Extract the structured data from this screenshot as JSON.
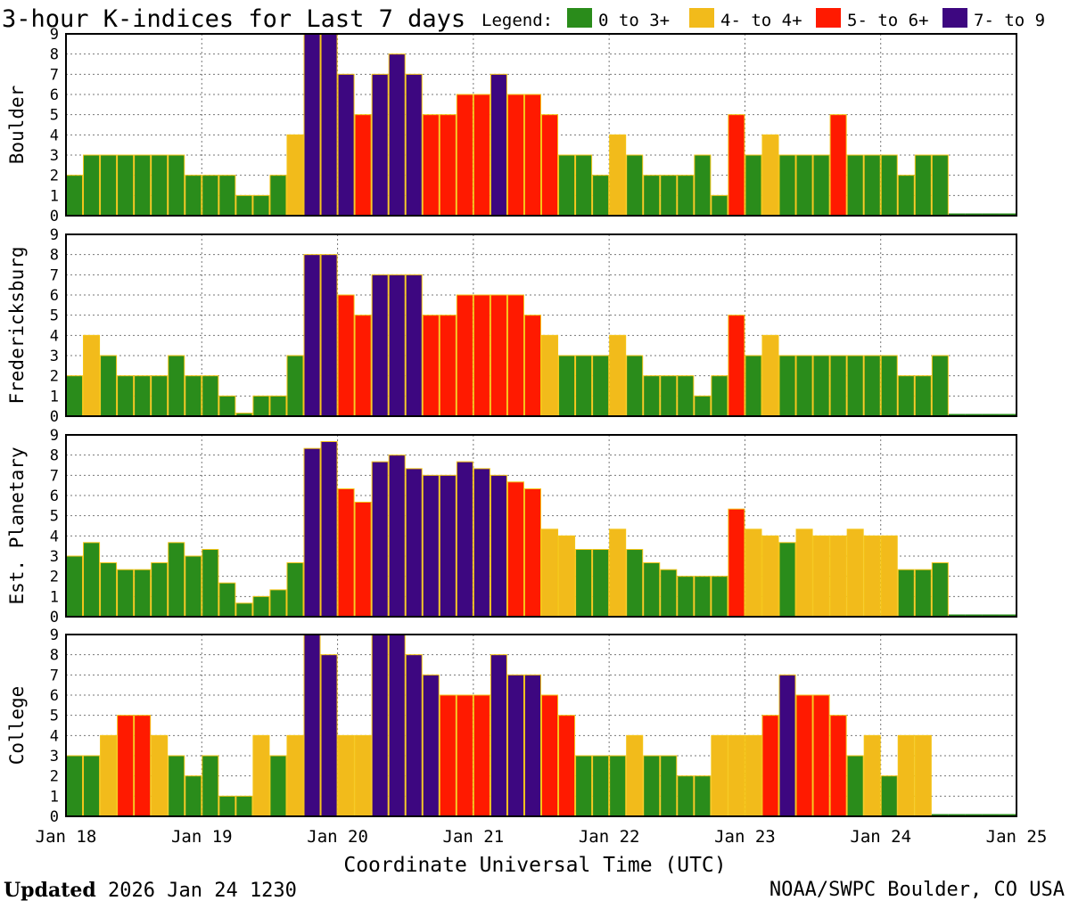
{
  "header": {
    "title": "3-hour K-indices for Last 7 days",
    "legend_label": "Legend:",
    "legend": [
      {
        "label": "0 to 3+",
        "color": "#2a8c1b"
      },
      {
        "label": "4- to 4+",
        "color": "#f2bb1b"
      },
      {
        "label": "5- to 6+",
        "color": "#ff1a00"
      },
      {
        "label": "7- to 9",
        "color": "#3d0780"
      }
    ]
  },
  "xaxis": {
    "label": "Coordinate Universal Time (UTC)",
    "ticks": [
      "Jan 18",
      "Jan 19",
      "Jan 20",
      "Jan 21",
      "Jan 22",
      "Jan 23",
      "Jan 24",
      "Jan 25"
    ]
  },
  "footer": {
    "updated_label": "Updated",
    "updated_value": "2026 Jan 24 1230",
    "credit": "NOAA/SWPC Boulder, CO USA"
  },
  "chart_data": [
    {
      "type": "bar",
      "station": "Boulder",
      "ylabel": "Boulder",
      "ylim": [
        0,
        9
      ],
      "yticks": [
        0,
        1,
        2,
        3,
        4,
        5,
        6,
        7,
        8,
        9
      ],
      "grid": true,
      "xrange": [
        "2026-01-18 00:00",
        "2026-01-25 00:00"
      ],
      "interval_hours": 3,
      "values": [
        2,
        3,
        3,
        3,
        3,
        3,
        3,
        2,
        2,
        2,
        1,
        1,
        2,
        4,
        9,
        9,
        7,
        5,
        7,
        8,
        7,
        5,
        5,
        6,
        6,
        7,
        6,
        6,
        5,
        3,
        3,
        2,
        4,
        3,
        2,
        2,
        2,
        3,
        1,
        5,
        3,
        4,
        3,
        3,
        3,
        5,
        3,
        3,
        3,
        2,
        3,
        3,
        null,
        null,
        null,
        null
      ]
    },
    {
      "type": "bar",
      "station": "Fredericksburg",
      "ylabel": "Fredericksburg",
      "ylim": [
        0,
        9
      ],
      "yticks": [
        0,
        1,
        2,
        3,
        4,
        5,
        6,
        7,
        8,
        9
      ],
      "grid": true,
      "xrange": [
        "2026-01-18 00:00",
        "2026-01-25 00:00"
      ],
      "interval_hours": 3,
      "values": [
        2,
        4,
        3,
        2,
        2,
        2,
        3,
        2,
        2,
        1,
        0.15,
        1,
        1,
        3,
        8,
        8,
        6,
        5,
        7,
        7,
        7,
        5,
        5,
        6,
        6,
        6,
        6,
        5,
        4,
        3,
        3,
        3,
        4,
        3,
        2,
        2,
        2,
        1,
        2,
        5,
        3,
        4,
        3,
        3,
        3,
        3,
        3,
        3,
        3,
        2,
        2,
        3,
        null,
        null,
        null,
        null
      ]
    },
    {
      "type": "bar",
      "station": "Est. Planetary",
      "ylabel": "Est. Planetary",
      "ylim": [
        0,
        9
      ],
      "yticks": [
        0,
        1,
        2,
        3,
        4,
        5,
        6,
        7,
        8,
        9
      ],
      "grid": true,
      "xrange": [
        "2026-01-18 00:00",
        "2026-01-25 00:00"
      ],
      "interval_hours": 3,
      "values": [
        3,
        3.67,
        2.67,
        2.33,
        2.33,
        2.67,
        3.67,
        3,
        3.33,
        1.67,
        0.67,
        1,
        1.33,
        2.67,
        8.33,
        8.67,
        6.33,
        5.67,
        7.67,
        8,
        7.33,
        7,
        7,
        7.67,
        7.33,
        7,
        6.67,
        6.33,
        4.33,
        4,
        3.33,
        3.33,
        4.33,
        3.33,
        2.67,
        2.33,
        2,
        2,
        2,
        5.33,
        4.33,
        4,
        3.67,
        4.33,
        4,
        4,
        4.33,
        4,
        4,
        2.33,
        2.33,
        2.67,
        null,
        null,
        null,
        null
      ]
    },
    {
      "type": "bar",
      "station": "College",
      "ylabel": "College",
      "ylim": [
        0,
        9
      ],
      "yticks": [
        0,
        1,
        2,
        3,
        4,
        5,
        6,
        7,
        8,
        9
      ],
      "grid": true,
      "xrange": [
        "2026-01-18 00:00",
        "2026-01-25 00:00"
      ],
      "interval_hours": 3,
      "values": [
        3,
        3,
        4,
        5,
        5,
        4,
        3,
        2,
        3,
        1,
        1,
        4,
        3,
        4,
        9,
        8,
        4,
        4,
        9,
        9,
        8,
        7,
        6,
        6,
        6,
        8,
        7,
        7,
        6,
        5,
        3,
        3,
        3,
        4,
        3,
        3,
        2,
        2,
        4,
        4,
        4,
        5,
        7,
        6,
        6,
        5,
        3,
        4,
        2,
        4,
        4,
        null,
        null,
        null,
        null,
        null
      ]
    }
  ]
}
